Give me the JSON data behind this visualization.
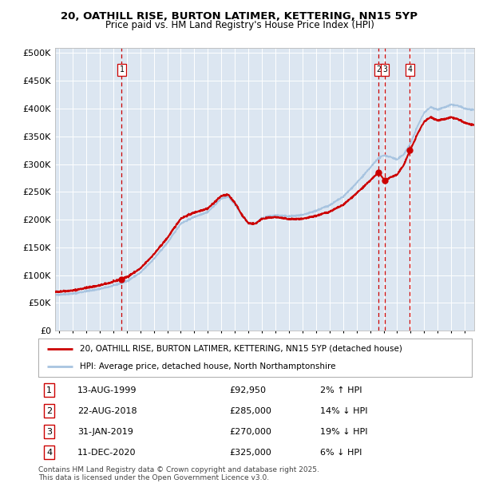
{
  "title_line1": "20, OATHILL RISE, BURTON LATIMER, KETTERING, NN15 5YP",
  "title_line2": "Price paid vs. HM Land Registry's House Price Index (HPI)",
  "background_color": "#dce6f1",
  "plot_bg_color": "#dce6f1",
  "hpi_color": "#a8c4e0",
  "price_color": "#cc0000",
  "sale_marker_color": "#cc0000",
  "dashed_line_color": "#cc0000",
  "ylim": [
    0,
    510000
  ],
  "yticks": [
    0,
    50000,
    100000,
    150000,
    200000,
    250000,
    300000,
    350000,
    400000,
    450000,
    500000
  ],
  "ytick_labels": [
    "£0",
    "£50K",
    "£100K",
    "£150K",
    "£200K",
    "£250K",
    "£300K",
    "£350K",
    "£400K",
    "£450K",
    "£500K"
  ],
  "xlim_start": 1994.7,
  "xlim_end": 2025.7,
  "xticks": [
    1995,
    1996,
    1997,
    1998,
    1999,
    2000,
    2001,
    2002,
    2003,
    2004,
    2005,
    2006,
    2007,
    2008,
    2009,
    2010,
    2011,
    2012,
    2013,
    2014,
    2015,
    2016,
    2017,
    2018,
    2019,
    2020,
    2021,
    2022,
    2023,
    2024,
    2025
  ],
  "sales": [
    {
      "num": 1,
      "date_str": "13-AUG-1999",
      "date_x": 1999.62,
      "price": 92950,
      "pct_str": "2% ↑ HPI"
    },
    {
      "num": 2,
      "date_str": "22-AUG-2018",
      "date_x": 2018.64,
      "price": 285000,
      "pct_str": "14% ↓ HPI"
    },
    {
      "num": 3,
      "date_str": "31-JAN-2019",
      "date_x": 2019.08,
      "price": 270000,
      "pct_str": "19% ↓ HPI"
    },
    {
      "num": 4,
      "date_str": "11-DEC-2020",
      "date_x": 2020.94,
      "price": 325000,
      "pct_str": "6% ↓ HPI"
    }
  ],
  "legend_label_price": "20, OATHILL RISE, BURTON LATIMER, KETTERING, NN15 5YP (detached house)",
  "legend_label_hpi": "HPI: Average price, detached house, North Northamptonshire",
  "footer": "Contains HM Land Registry data © Crown copyright and database right 2025.\nThis data is licensed under the Open Government Licence v3.0.",
  "table_rows": [
    {
      "num": 1,
      "date": "13-AUG-1999",
      "price": "£92,950",
      "pct": "2% ↑ HPI"
    },
    {
      "num": 2,
      "date": "22-AUG-2018",
      "price": "£285,000",
      "pct": "14% ↓ HPI"
    },
    {
      "num": 3,
      "date": "31-JAN-2019",
      "price": "£270,000",
      "pct": "19% ↓ HPI"
    },
    {
      "num": 4,
      "date": "11-DEC-2020",
      "price": "£325,000",
      "pct": "6% ↓ HPI"
    }
  ]
}
